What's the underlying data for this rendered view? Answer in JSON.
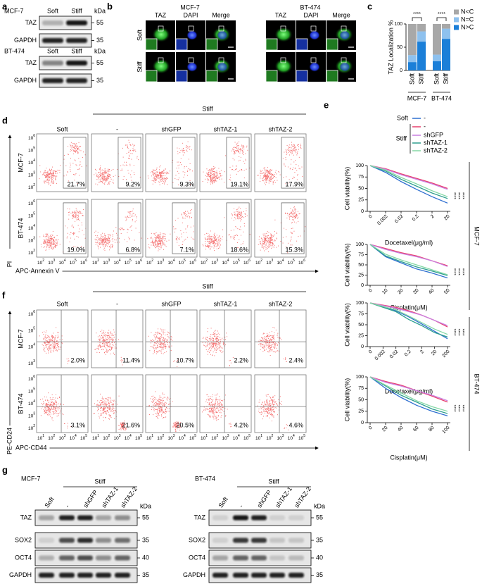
{
  "panels": {
    "a": {
      "label": "a",
      "kda_unit": "kDa",
      "groups": [
        {
          "cell": "MCF-7",
          "lanes": [
            "Soft",
            "Stiff"
          ],
          "rows": [
            "TAZ",
            "GAPDH"
          ],
          "kda": [
            "55",
            "35"
          ]
        },
        {
          "cell": "BT-474",
          "lanes": [
            "Soft",
            "Stiff"
          ],
          "rows": [
            "TAZ",
            "GAPDH"
          ],
          "kda": [
            "55",
            "35"
          ]
        }
      ]
    },
    "b": {
      "label": "b",
      "rows": [
        "Soft",
        "Stiff"
      ],
      "groups": [
        {
          "cell": "MCF-7",
          "channels": [
            "TAZ",
            "DAPI",
            "Merge"
          ]
        },
        {
          "cell": "BT-474",
          "channels": [
            "TAZ",
            "DAPI",
            "Merge"
          ]
        }
      ]
    },
    "c": {
      "label": "c"
    },
    "d": {
      "label": "d",
      "stiff": "Stiff",
      "columns": [
        "Soft",
        "-",
        "shGFP",
        "shTAZ-1",
        "shTAZ-2"
      ],
      "rows": [
        "MCF-7",
        "BT-474"
      ],
      "percents": [
        [
          "21.7%",
          "9.2%",
          "9.3%",
          "19.1%",
          "17.9%"
        ],
        [
          "19.0%",
          "6.8%",
          "7.1%",
          "18.6%",
          "15.3%"
        ]
      ],
      "tick_base": "10",
      "y_exponents": [
        [
          "2",
          "3",
          "4",
          "5",
          "6"
        ],
        [
          "2",
          "3",
          "4",
          "5",
          "6"
        ]
      ],
      "x_exponents": [
        "2",
        "3",
        "4",
        "5",
        "6"
      ],
      "xlabel": "APC-Annexin V",
      "ylabel": "PI"
    },
    "e": {
      "label": "e",
      "groups": [
        "MCF-7",
        "BT-474"
      ]
    },
    "f": {
      "label": "f",
      "stiff": "Stiff",
      "columns": [
        "Soft",
        "-",
        "shGFP",
        "shTAZ-1",
        "shTAZ-2"
      ],
      "rows": [
        "MCF-7",
        "BT-474"
      ],
      "percents": [
        [
          "2.0%",
          "11.4%",
          "10.7%",
          "2.2%",
          "2.4%"
        ],
        [
          "3.1%",
          "21.6%",
          "20.5%",
          "4.2%",
          "4.6%"
        ]
      ],
      "tick_base": "10",
      "y_exponents": [
        [
          "3",
          "4",
          "5",
          "6"
        ],
        [
          "2",
          "3",
          "4",
          "5",
          "6"
        ]
      ],
      "x_exponents": [
        "1",
        "2",
        "3",
        "4",
        "5"
      ],
      "xlabel": "APC-CD44",
      "ylabel": "PE-CD24"
    },
    "g": {
      "label": "g",
      "kda_unit": "kDa",
      "blots": [
        {
          "cell": "MCF-7",
          "stiff": "Stiff",
          "lanes": [
            "Soft",
            "-",
            "shGFP",
            "shTAZ-1",
            "shTAZ-2"
          ],
          "rows": [
            "TAZ",
            "SOX2",
            "OCT4",
            "GAPDH"
          ],
          "kda": [
            "55",
            "35",
            "40",
            "35"
          ]
        },
        {
          "cell": "BT-474",
          "stiff": "Stiff",
          "lanes": [
            "Soft",
            "-",
            "shGFP",
            "shTAZ-1",
            "shTAZ-2"
          ],
          "rows": [
            "TAZ",
            "SOX2",
            "OCT4",
            "GAPDH"
          ],
          "kda": [
            "55",
            "35",
            "40",
            "35"
          ]
        }
      ]
    }
  },
  "chart_data": [
    {
      "type": "bar",
      "stacked": true,
      "ylabel": "TAZ Localization %",
      "categories": [
        "Soft",
        "Stiff",
        "Soft",
        "Stiff"
      ],
      "groups": [
        "MCF-7",
        "BT-474"
      ],
      "ylim": [
        0,
        100
      ],
      "yticks": [
        0,
        50,
        100
      ],
      "series": [
        {
          "name": "N>C",
          "color": "#1b7fd8",
          "values": [
            18,
            62,
            20,
            68
          ]
        },
        {
          "name": "N=C",
          "color": "#8ec1ee",
          "values": [
            15,
            22,
            14,
            22
          ]
        },
        {
          "name": "N<C",
          "color": "#a8a8a8",
          "values": [
            67,
            16,
            66,
            10
          ]
        }
      ],
      "annotations": [
        "****",
        "****"
      ]
    },
    {
      "type": "line",
      "xlabel": "Docetaxel(μg/ml)",
      "ylabel": "Cell viability(%)",
      "categories": [
        "0",
        "0.002",
        "0.02",
        "0.2",
        "2",
        "20"
      ],
      "ylim": [
        0,
        100
      ],
      "yticks": [
        0,
        25,
        50,
        75,
        100
      ],
      "legend_groups": [
        "Soft",
        "Stiff"
      ],
      "series": [
        {
          "name": "-",
          "color": "#2e6fd0",
          "values": [
            100,
            85,
            65,
            48,
            32,
            18
          ]
        },
        {
          "name": "-",
          "color": "#e8406e",
          "values": [
            100,
            93,
            82,
            72,
            62,
            50
          ]
        },
        {
          "name": "shGFP",
          "color": "#c97ee0",
          "values": [
            100,
            92,
            80,
            70,
            60,
            48
          ]
        },
        {
          "name": "shTAZ-1",
          "color": "#2f9f8f",
          "values": [
            100,
            88,
            70,
            55,
            40,
            28
          ]
        },
        {
          "name": "shTAZ-2",
          "color": "#85d9a5",
          "values": [
            100,
            90,
            74,
            60,
            45,
            32
          ]
        }
      ],
      "annotations": [
        "****",
        "****",
        "****"
      ]
    },
    {
      "type": "line",
      "xlabel": "Cisplatin(μM)",
      "ylabel": "Cell viability(%)",
      "categories": [
        "0",
        "10",
        "20",
        "30",
        "40",
        "50"
      ],
      "ylim": [
        0,
        100
      ],
      "yticks": [
        0,
        25,
        50,
        75,
        100
      ],
      "series": [
        {
          "color": "#2e6fd0",
          "values": [
            100,
            70,
            55,
            40,
            30,
            18
          ]
        },
        {
          "color": "#e8406e",
          "values": [
            100,
            90,
            80,
            72,
            60,
            48
          ]
        },
        {
          "color": "#c97ee0",
          "values": [
            100,
            88,
            78,
            70,
            60,
            46
          ]
        },
        {
          "color": "#2f9f8f",
          "values": [
            100,
            72,
            58,
            45,
            35,
            24
          ]
        },
        {
          "color": "#85d9a5",
          "values": [
            100,
            76,
            62,
            50,
            38,
            26
          ]
        }
      ],
      "annotations": [
        "****",
        "****",
        "****"
      ]
    },
    {
      "type": "line",
      "xlabel": "Docetaxel(μg/ml)",
      "ylabel": "Cell viability(%)",
      "categories": [
        "0",
        "0.002",
        "0.02",
        "0.2",
        "2",
        "20",
        "200"
      ],
      "ylim": [
        0,
        100
      ],
      "yticks": [
        0,
        25,
        50,
        75,
        100
      ],
      "series": [
        {
          "color": "#2e6fd0",
          "values": [
            100,
            92,
            82,
            68,
            52,
            35,
            18
          ]
        },
        {
          "color": "#e8406e",
          "values": [
            100,
            95,
            90,
            82,
            72,
            60,
            45
          ]
        },
        {
          "color": "#c97ee0",
          "values": [
            100,
            94,
            88,
            80,
            72,
            60,
            48
          ]
        },
        {
          "color": "#2f9f8f",
          "values": [
            100,
            90,
            80,
            62,
            48,
            32,
            22
          ]
        },
        {
          "color": "#85d9a5",
          "values": [
            100,
            92,
            84,
            70,
            55,
            40,
            28
          ]
        }
      ],
      "annotations": [
        "****",
        "****",
        "****"
      ]
    },
    {
      "type": "line",
      "xlabel": "Cisplatin(μM)",
      "ylabel": "Cell viability(%)",
      "categories": [
        "0",
        "20",
        "40",
        "60",
        "80",
        "100"
      ],
      "ylim": [
        0,
        100
      ],
      "yticks": [
        0,
        25,
        50,
        75,
        100
      ],
      "series": [
        {
          "color": "#2e6fd0",
          "values": [
            100,
            75,
            55,
            38,
            25,
            15
          ]
        },
        {
          "color": "#e8406e",
          "values": [
            100,
            90,
            82,
            70,
            58,
            45
          ]
        },
        {
          "color": "#c97ee0",
          "values": [
            100,
            88,
            80,
            70,
            60,
            48
          ]
        },
        {
          "color": "#2f9f8f",
          "values": [
            100,
            80,
            60,
            45,
            30,
            20
          ]
        },
        {
          "color": "#85d9a5",
          "values": [
            100,
            82,
            65,
            48,
            35,
            25
          ]
        }
      ],
      "annotations": [
        "****",
        "****",
        "****"
      ]
    }
  ]
}
